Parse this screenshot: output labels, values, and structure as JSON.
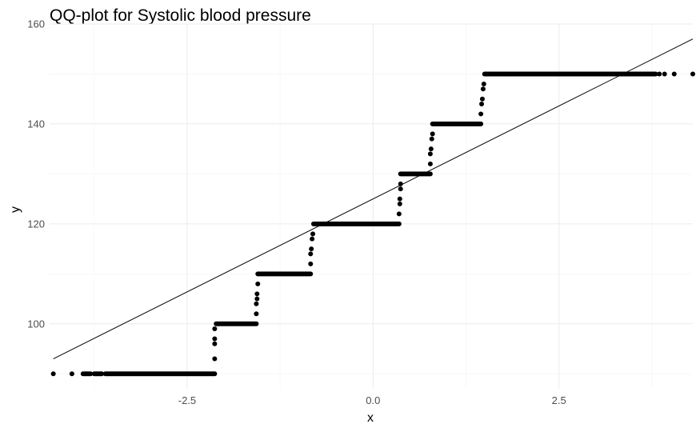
{
  "chart_data": {
    "type": "scatter",
    "title": "QQ-plot for Systolic blood pressure",
    "xlabel": "x",
    "ylabel": "y",
    "xlim": [
      -4.35,
      4.3
    ],
    "ylim": [
      87,
      160
    ],
    "x_ticks": [
      -2.5,
      0.0,
      2.5
    ],
    "x_tick_labels": [
      "-2.5",
      "0.0",
      "2.5"
    ],
    "y_ticks": [
      100,
      120,
      140,
      160
    ],
    "y_tick_labels": [
      "100",
      "120",
      "140",
      "160"
    ],
    "grid": true,
    "legend": "none",
    "point_color": "#000000",
    "reference_line": {
      "x": [
        -4.3,
        4.3
      ],
      "y": [
        93,
        157
      ]
    },
    "point_segments": [
      {
        "x_start": -4.3,
        "x_end": -4.3,
        "y": 90
      },
      {
        "x_start": -4.05,
        "x_end": -4.05,
        "y": 90
      },
      {
        "x_start": -3.9,
        "x_end": -3.8,
        "y": 90
      },
      {
        "x_start": -3.75,
        "x_end": -3.65,
        "y": 90
      },
      {
        "x_start": -3.6,
        "x_end": -2.13,
        "y": 90
      },
      {
        "x_start": -2.13,
        "x_end": -2.13,
        "y": 93
      },
      {
        "x_start": -2.13,
        "x_end": -2.13,
        "y": 96
      },
      {
        "x_start": -2.13,
        "x_end": -2.13,
        "y": 97
      },
      {
        "x_start": -2.13,
        "x_end": -2.13,
        "y": 99
      },
      {
        "x_start": -2.11,
        "x_end": -1.57,
        "y": 100
      },
      {
        "x_start": -1.57,
        "x_end": -1.57,
        "y": 102
      },
      {
        "x_start": -1.57,
        "x_end": -1.57,
        "y": 104
      },
      {
        "x_start": -1.56,
        "x_end": -1.56,
        "y": 105
      },
      {
        "x_start": -1.56,
        "x_end": -1.56,
        "y": 106
      },
      {
        "x_start": -1.55,
        "x_end": -1.55,
        "y": 108
      },
      {
        "x_start": -1.55,
        "x_end": -0.84,
        "y": 110
      },
      {
        "x_start": -0.84,
        "x_end": -0.84,
        "y": 112
      },
      {
        "x_start": -0.84,
        "x_end": -0.84,
        "y": 114
      },
      {
        "x_start": -0.83,
        "x_end": -0.83,
        "y": 115
      },
      {
        "x_start": -0.82,
        "x_end": -0.82,
        "y": 117
      },
      {
        "x_start": -0.81,
        "x_end": -0.81,
        "y": 118
      },
      {
        "x_start": -0.8,
        "x_end": 0.35,
        "y": 120
      },
      {
        "x_start": 0.35,
        "x_end": 0.35,
        "y": 122
      },
      {
        "x_start": 0.36,
        "x_end": 0.36,
        "y": 124
      },
      {
        "x_start": 0.36,
        "x_end": 0.36,
        "y": 125
      },
      {
        "x_start": 0.37,
        "x_end": 0.37,
        "y": 127
      },
      {
        "x_start": 0.37,
        "x_end": 0.37,
        "y": 128
      },
      {
        "x_start": 0.37,
        "x_end": 0.77,
        "y": 130
      },
      {
        "x_start": 0.77,
        "x_end": 0.77,
        "y": 132
      },
      {
        "x_start": 0.77,
        "x_end": 0.77,
        "y": 134
      },
      {
        "x_start": 0.78,
        "x_end": 0.78,
        "y": 135
      },
      {
        "x_start": 0.79,
        "x_end": 0.79,
        "y": 137
      },
      {
        "x_start": 0.8,
        "x_end": 0.8,
        "y": 138
      },
      {
        "x_start": 0.8,
        "x_end": 1.45,
        "y": 140
      },
      {
        "x_start": 1.45,
        "x_end": 1.45,
        "y": 142
      },
      {
        "x_start": 1.46,
        "x_end": 1.46,
        "y": 144
      },
      {
        "x_start": 1.47,
        "x_end": 1.47,
        "y": 145
      },
      {
        "x_start": 1.48,
        "x_end": 1.48,
        "y": 147
      },
      {
        "x_start": 1.49,
        "x_end": 1.49,
        "y": 148
      },
      {
        "x_start": 1.5,
        "x_end": 3.8,
        "y": 150
      },
      {
        "x_start": 3.85,
        "x_end": 3.85,
        "y": 150
      },
      {
        "x_start": 3.92,
        "x_end": 3.92,
        "y": 150
      },
      {
        "x_start": 4.05,
        "x_end": 4.05,
        "y": 150
      },
      {
        "x_start": 4.3,
        "x_end": 4.3,
        "y": 150
      }
    ]
  }
}
